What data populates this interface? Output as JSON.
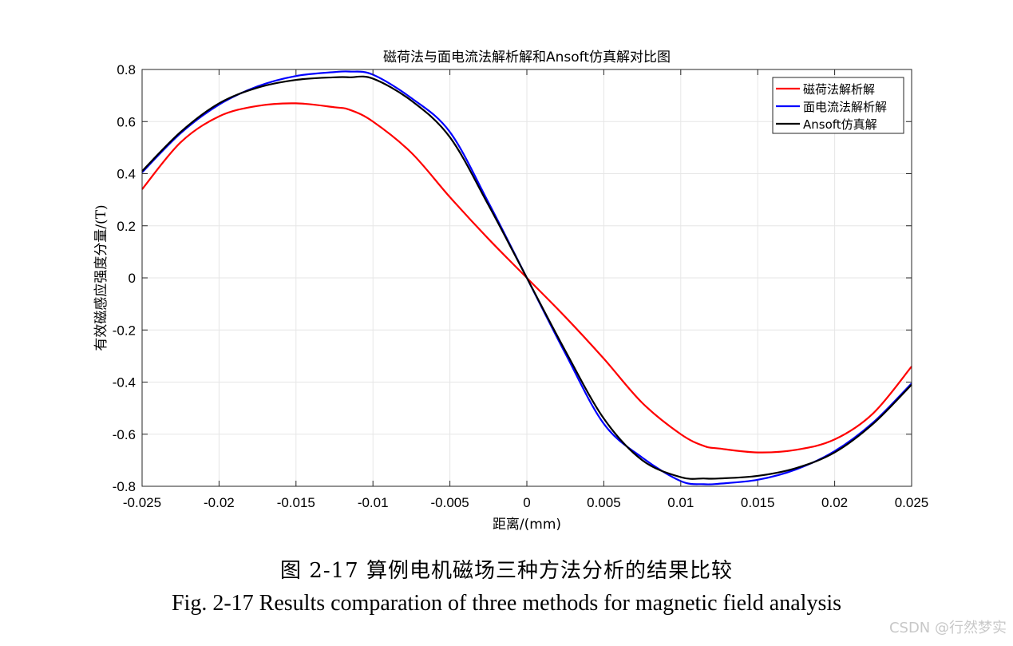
{
  "chart_data": {
    "type": "line",
    "title": "磁荷法与面电流法解析解和Ansoft仿真解对比图",
    "xlabel": "距离/(mm)",
    "ylabel": "有效磁感应强度分量/(T)",
    "xlim": [
      -0.025,
      0.025
    ],
    "ylim": [
      -0.8,
      0.8
    ],
    "xticks": [
      -0.025,
      -0.02,
      -0.015,
      -0.01,
      -0.005,
      0,
      0.005,
      0.01,
      0.015,
      0.02,
      0.025
    ],
    "xtick_labels": [
      "-0.025",
      "-0.02",
      "-0.015",
      "-0.01",
      "-0.005",
      "0",
      "0.005",
      "0.01",
      "0.015",
      "0.02",
      "0.025"
    ],
    "yticks": [
      0.8,
      0.6,
      0.4,
      0.2,
      0,
      -0.2,
      -0.4,
      -0.6,
      -0.8
    ],
    "ytick_labels": [
      "0.8",
      "0.6",
      "0.4",
      "0.2",
      "0",
      "-0.2",
      "-0.4",
      "-0.6",
      "-0.8"
    ],
    "grid": true,
    "legend_position": "top-right",
    "x": [
      -0.025,
      -0.0225,
      -0.02,
      -0.0175,
      -0.015,
      -0.0125,
      -0.0115,
      -0.01,
      -0.0075,
      -0.005,
      -0.0025,
      0,
      0.0025,
      0.005,
      0.0075,
      0.01,
      0.0115,
      0.0125,
      0.015,
      0.0175,
      0.02,
      0.0225,
      0.025
    ],
    "series": [
      {
        "name": "磁荷法解析解",
        "color": "#ff0000",
        "values": [
          0.34,
          0.52,
          0.62,
          0.66,
          0.67,
          0.655,
          0.645,
          0.6,
          0.48,
          0.31,
          0.15,
          0.0,
          -0.15,
          -0.31,
          -0.48,
          -0.6,
          -0.645,
          -0.655,
          -0.67,
          -0.66,
          -0.62,
          -0.52,
          -0.34
        ]
      },
      {
        "name": "面电流法解析解",
        "color": "#0000ff",
        "values": [
          0.405,
          0.555,
          0.665,
          0.735,
          0.775,
          0.79,
          0.792,
          0.78,
          0.69,
          0.56,
          0.29,
          0.0,
          -0.29,
          -0.56,
          -0.69,
          -0.78,
          -0.792,
          -0.79,
          -0.775,
          -0.735,
          -0.665,
          -0.555,
          -0.405
        ]
      },
      {
        "name": "Ansoft仿真解",
        "color": "#000000",
        "values": [
          0.41,
          0.56,
          0.67,
          0.73,
          0.76,
          0.77,
          0.77,
          0.765,
          0.68,
          0.54,
          0.28,
          0.0,
          -0.28,
          -0.54,
          -0.7,
          -0.765,
          -0.77,
          -0.77,
          -0.76,
          -0.73,
          -0.67,
          -0.56,
          -0.41
        ]
      }
    ]
  },
  "caption": {
    "chinese": "图  2-17 算例电机磁场三种方法分析的结果比较",
    "english": "Fig. 2-17 Results comparation of three methods for magnetic field analysis"
  },
  "watermark": "CSDN @行然梦实"
}
